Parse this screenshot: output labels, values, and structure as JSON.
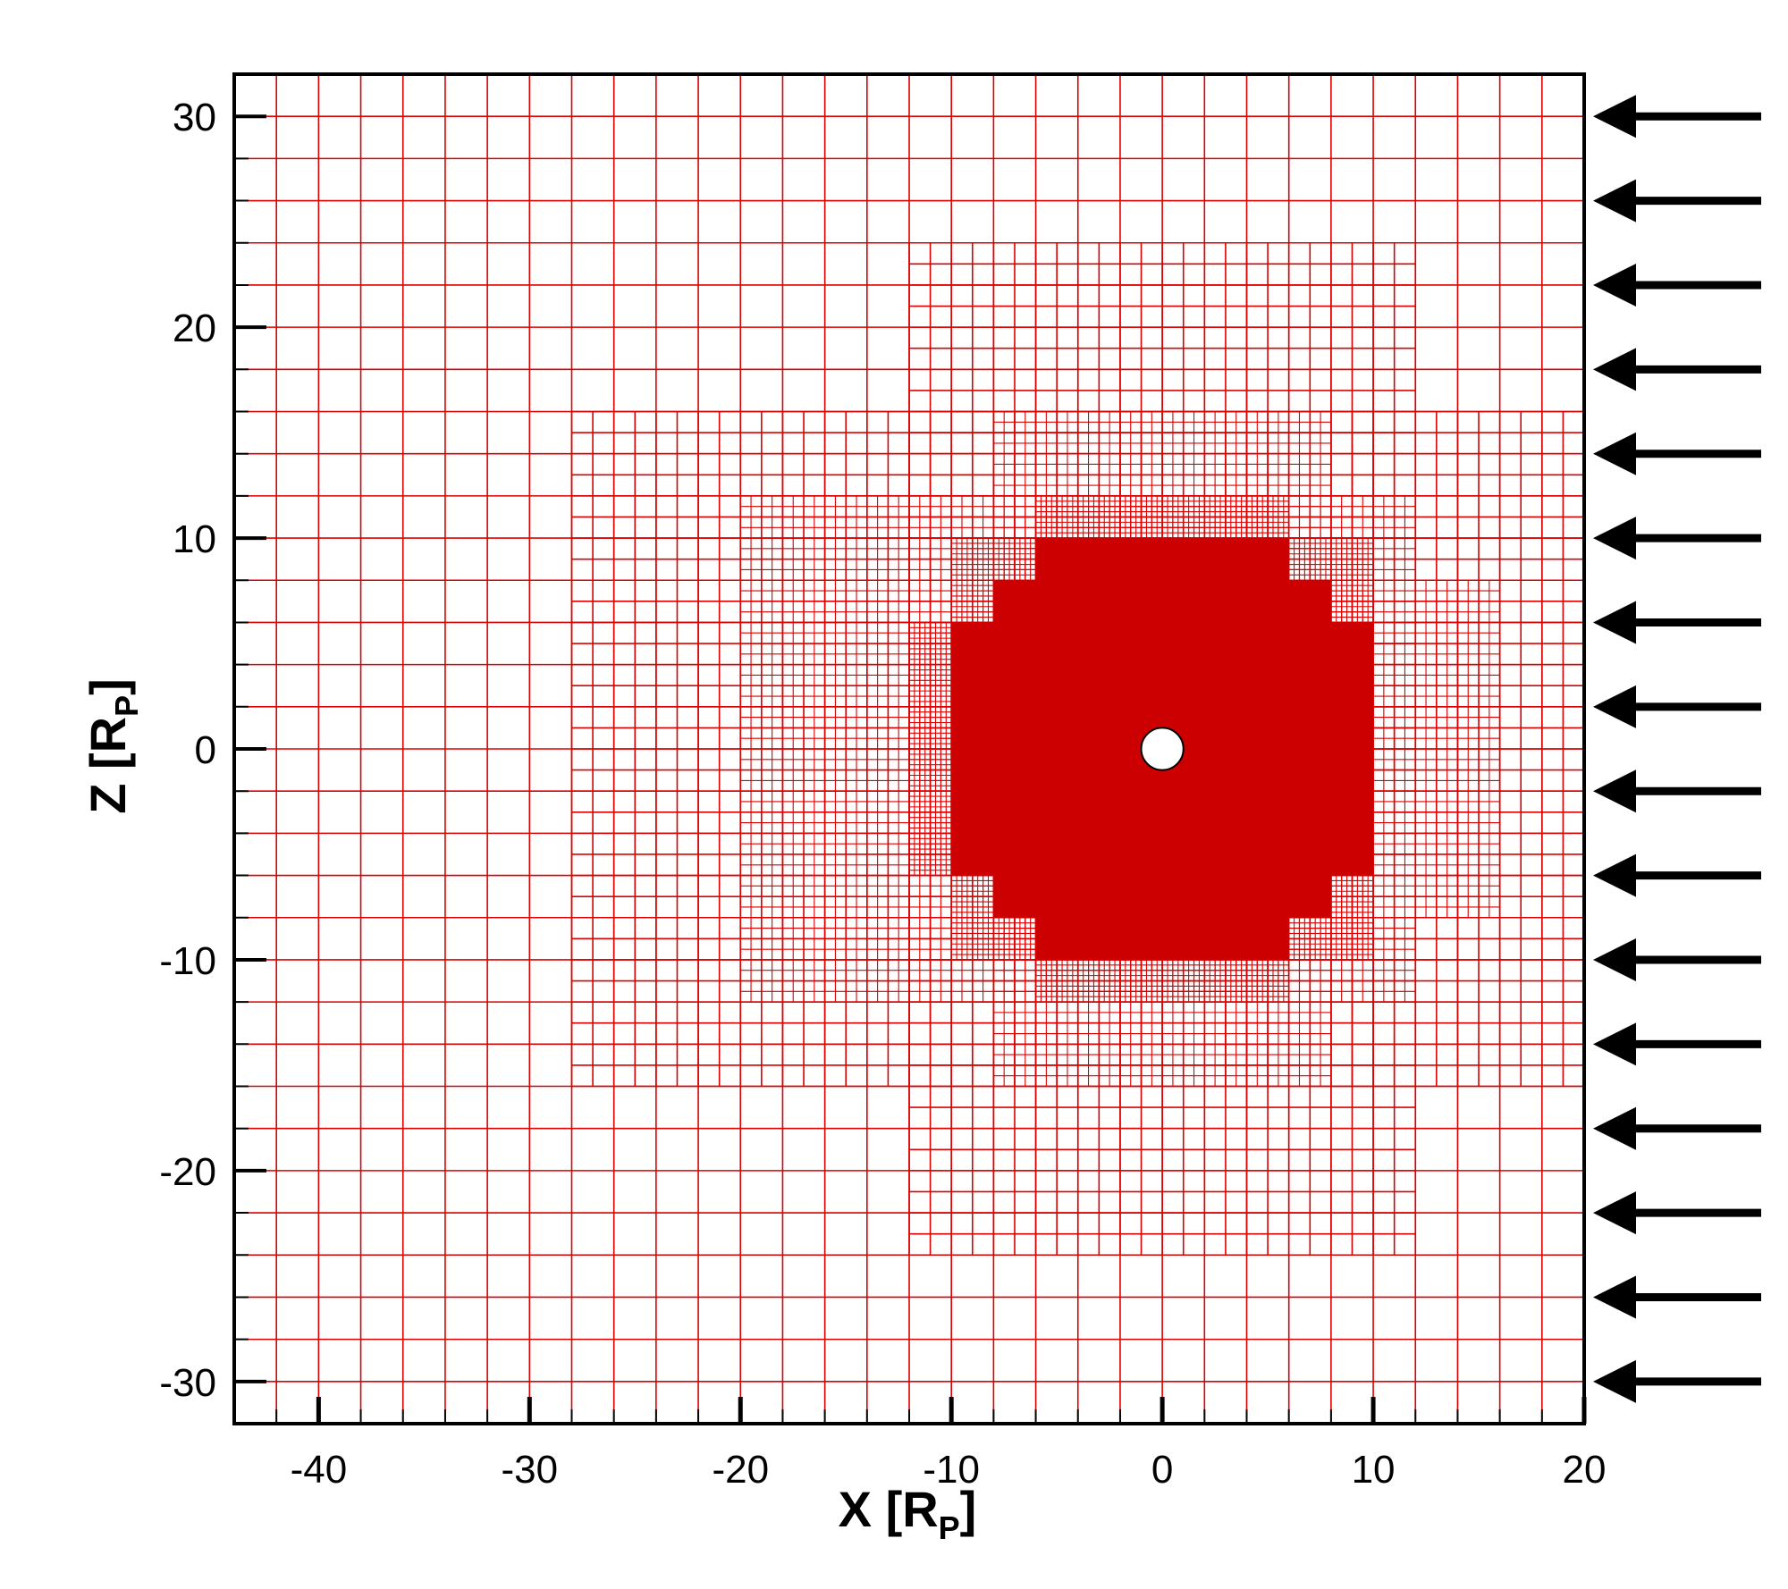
{
  "plot": {
    "x_axis": {
      "label_main": "X [R",
      "label_sub": "P",
      "label_close": "]",
      "range": [
        -44,
        20
      ],
      "major_ticks": [
        -40,
        -30,
        -20,
        -10,
        0,
        10,
        20
      ],
      "tick_labels": [
        "-40",
        "-30",
        "-20",
        "-10",
        "0",
        "10",
        "20"
      ]
    },
    "y_axis": {
      "label_main": "Z [R",
      "label_sub": "P",
      "label_close": "]",
      "range": [
        -32,
        32
      ],
      "major_ticks": [
        30,
        20,
        10,
        0,
        -10,
        -20,
        -30
      ],
      "tick_labels": [
        "30",
        "20",
        "10",
        "0",
        "-10",
        "-20",
        "-30"
      ]
    },
    "grid_color": "#dd0000",
    "fill_color": "#cc0000",
    "arrow_color": "#000000",
    "arrow_y_values": [
      30,
      26,
      22,
      18,
      14,
      10,
      6,
      2,
      -2,
      -6,
      -10,
      -14,
      -18,
      -22,
      -26,
      -30
    ],
    "refinement_levels": [
      {
        "x": [
          -44,
          20
        ],
        "y": [
          -32,
          32
        ],
        "spacing": 2
      },
      {
        "x": [
          -28,
          20
        ],
        "y": [
          -16,
          16
        ],
        "spacing": 1
      },
      {
        "x": [
          -12,
          12
        ],
        "y": [
          -24,
          24
        ],
        "spacing": 1
      },
      {
        "x": [
          -20,
          12
        ],
        "y": [
          -12,
          12
        ],
        "spacing": 0.5
      },
      {
        "x": [
          -8,
          8
        ],
        "y": [
          -16,
          16
        ],
        "spacing": 0.5
      },
      {
        "x": [
          12,
          16
        ],
        "y": [
          -8,
          8
        ],
        "spacing": 0.5
      },
      {
        "x": [
          -12,
          10
        ],
        "y": [
          -6,
          6
        ],
        "spacing": 0.25
      },
      {
        "x": [
          -10,
          10
        ],
        "y": [
          -10,
          10
        ],
        "spacing": 0.25
      },
      {
        "x": [
          -6,
          6
        ],
        "y": [
          -12,
          12
        ],
        "spacing": 0.25
      }
    ],
    "dense_regions": [
      {
        "x": [
          -10,
          10
        ],
        "y": [
          -6,
          6
        ]
      },
      {
        "x": [
          -8,
          8
        ],
        "y": [
          -8,
          8
        ]
      },
      {
        "x": [
          -6,
          6
        ],
        "y": [
          -10,
          10
        ]
      }
    ],
    "planet_center": [
      0,
      0
    ],
    "planet_radius": 1
  }
}
